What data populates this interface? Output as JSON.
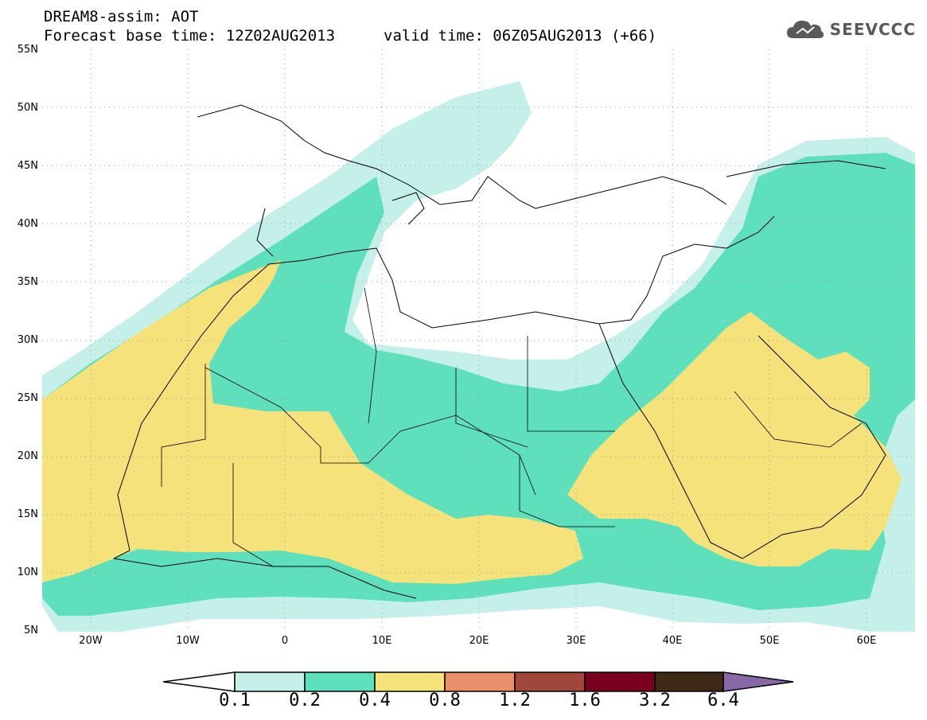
{
  "header": {
    "line1": "DREAM8-assim: AOT",
    "line2": "Forecast base time: 12Z02AUG2013",
    "valid": "valid time: 06Z05AUG2013 (+66)"
  },
  "brand": {
    "name": "SEEVCCC",
    "icon": "cloud-icon",
    "color": "#595959"
  },
  "map": {
    "lat_range": [
      5,
      55
    ],
    "lon_range": [
      -25,
      65
    ],
    "lat_labels": [
      "55N",
      "50N",
      "45N",
      "40N",
      "35N",
      "30N",
      "25N",
      "20N",
      "15N",
      "10N",
      "5N"
    ],
    "lon_labels": [
      "20W",
      "10W",
      "0",
      "10E",
      "20E",
      "30E",
      "40E",
      "50E",
      "60E"
    ],
    "grid": "dotted",
    "gridlines_lat": [
      10,
      15,
      20,
      25,
      30,
      35,
      40,
      45,
      50
    ],
    "gridlines_lon": [
      -20,
      -10,
      0,
      10,
      20,
      30,
      40,
      50,
      60
    ]
  },
  "colorbar": {
    "levels": [
      "0.1",
      "0.2",
      "0.4",
      "0.8",
      "1.2",
      "1.6",
      "3.2",
      "6.4"
    ],
    "colors": [
      "#ffffff",
      "#c5f0ea",
      "#5ee0bd",
      "#f5e27a",
      "#e8906a",
      "#a0463a",
      "#7a0020",
      "#3f2a18",
      "#8a68a8"
    ]
  }
}
